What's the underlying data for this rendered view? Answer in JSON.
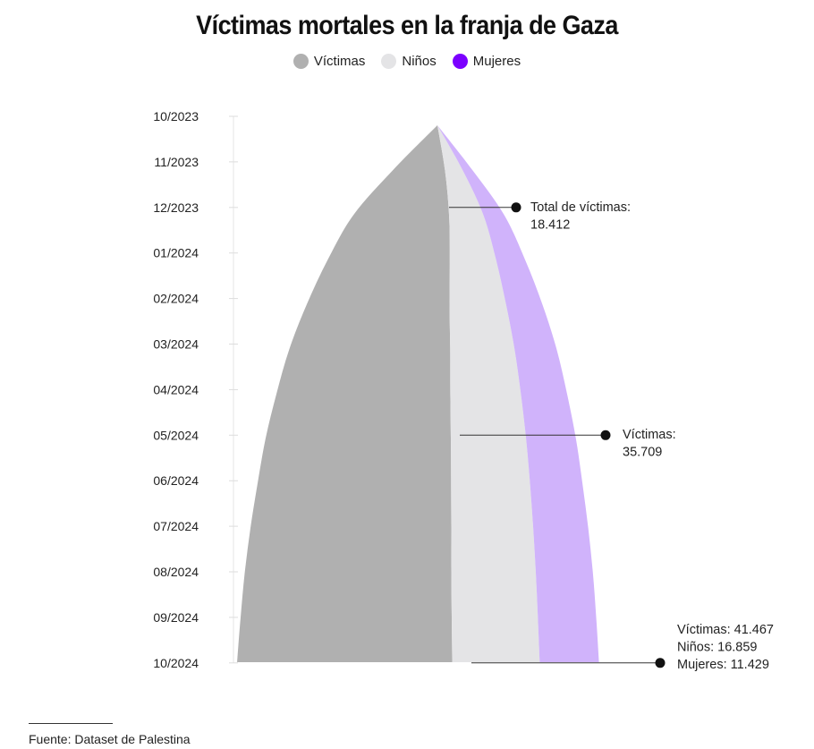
{
  "chart_data": {
    "type": "area",
    "subtype": "stacked-centered-streamgraph",
    "title": "Víctimas mortales en la franja de Gaza",
    "orientation": "vertical-time",
    "legend": {
      "placement": "top-center",
      "items": [
        {
          "label": "Víctimas",
          "color": "#b0b0b0"
        },
        {
          "label": "Niños",
          "color": "#e4e4e6"
        },
        {
          "label": "Mujeres",
          "color": "#7b00ff"
        }
      ]
    },
    "y_ticks": [
      "10/2023",
      "11/2023",
      "12/2023",
      "01/2024",
      "02/2024",
      "03/2024",
      "04/2024",
      "05/2024",
      "06/2024",
      "07/2024",
      "08/2024",
      "09/2024",
      "10/2024"
    ],
    "x": [
      "10/2023",
      "11/2023",
      "12/2023",
      "01/2024",
      "02/2024",
      "03/2024",
      "04/2024",
      "05/2024",
      "06/2024",
      "07/2024",
      "08/2024",
      "09/2024",
      "10/2024"
    ],
    "series": [
      {
        "name": "Víctimas",
        "color": "#b0b0b0",
        "values": [
          0,
          10000,
          18412,
          23500,
          27500,
          31000,
          33500,
          35709,
          37300,
          38700,
          39800,
          40700,
          41467
        ]
      },
      {
        "name": "Niños",
        "color": "#e4e4e6",
        "values": [
          0,
          3400,
          6600,
          8900,
          10900,
          12400,
          13600,
          14500,
          15200,
          15800,
          16300,
          16600,
          16859
        ]
      },
      {
        "name": "Mujeres",
        "color": "#d0b3fb",
        "values": [
          0,
          1900,
          4000,
          5600,
          7000,
          8100,
          8900,
          9600,
          10100,
          10600,
          11000,
          11250,
          11429
        ]
      }
    ],
    "annotations": [
      {
        "at": "12/2023",
        "lines": [
          "Total de víctimas:",
          "18.412"
        ]
      },
      {
        "at": "05/2024",
        "lines": [
          "Víctimas:",
          "35.709"
        ]
      },
      {
        "at": "10/2024",
        "lines": [
          "Víctimas: 41.467",
          "Niños: 16.859",
          "Mujeres: 11.429"
        ]
      }
    ],
    "grid": false
  },
  "source": "Fuente: Dataset de Palestina"
}
